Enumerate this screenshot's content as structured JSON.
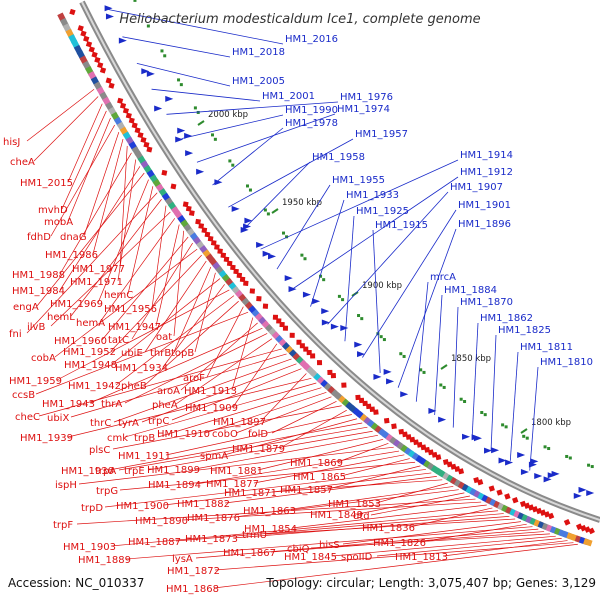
{
  "title": "Heliobacterium modesticaldum Ice1, complete genome",
  "accession_label": "Accession: NC_010337",
  "summary": "Topology: circular; Length: 3,075,407 bp; Genes: 3,129",
  "scale_labels": [
    "2000 kbp",
    "1950 kbp",
    "1900 kbp",
    "1850 kbp",
    "1800 kbp"
  ],
  "blue_labels": [
    "HM1_2016",
    "HM1_2018",
    "HM1_2005",
    "HM1_2001",
    "HM1_1976",
    "HM1_1990",
    "HM1_1974",
    "HM1_1978",
    "HM1_1957",
    "HM1_1958",
    "HM1_1914",
    "HM1_1955",
    "HM1_1912",
    "HM1_1933",
    "HM1_1907",
    "HM1_1925",
    "HM1_1901",
    "HM1_1915",
    "HM1_1896",
    "mrcA",
    "HM1_1884",
    "HM1_1870",
    "HM1_1862",
    "HM1_1825",
    "HM1_1811",
    "HM1_1810"
  ],
  "red_labels": [
    "hisJ",
    "cheA",
    "HM1_2015",
    "mvhD",
    "mobA",
    "fdhD",
    "dnaG",
    "HM1_1986",
    "HM1_1977",
    "HM1_1988",
    "HM1_1971",
    "HM1_1984",
    "engA",
    "HM1_1969",
    "hemC",
    "fni",
    "hemL",
    "HM1_1956",
    "ilvB",
    "hemA",
    "HM1_1947",
    "oat",
    "HM1_1960",
    "tatC",
    "cobA",
    "HM1_1952",
    "ubiE",
    "thrB",
    "topB",
    "HM1_1948",
    "HM1_1934",
    "HM1_1959",
    "HM1_1942",
    "pheB",
    "aroF",
    "ccsB",
    "HM1_1913",
    "aroA",
    "HM1_1943",
    "thrA",
    "pheA",
    "HM1_1909",
    "cheC",
    "ubiX",
    "thrC",
    "tyrA",
    "trpC",
    "HM1_1897",
    "HM1_1939",
    "cmk",
    "trpB",
    "HM1_1910",
    "cobO",
    "folD",
    "plsC",
    "HM1_1879",
    "HM1_1911",
    "spmA",
    "HM1_1930",
    "trpA",
    "trpE",
    "HM1_1899",
    "HM1_1881",
    "HM1_1869",
    "ispH",
    "HM1_1894",
    "HM1_1877",
    "HM1_1865",
    "trpG",
    "HM1_1857",
    "trpD",
    "HM1_1900",
    "HM1_1882",
    "HM1_1871",
    "HM1_1853",
    "HM1_1876",
    "HM1_1863",
    "HM1_1849",
    "dtd",
    "trpF",
    "HM1_1890",
    "HM1_1854",
    "HM1_1836",
    "HM1_1903",
    "HM1_1887",
    "HM1_1873",
    "trmU",
    "hisS",
    "HM1_1826",
    "HM1_1889",
    "lysA",
    "HM1_1867",
    "cbiQ",
    "HM1_1845",
    "spoIID",
    "HM1_1813",
    "HM1_1872",
    "HM1_1868"
  ],
  "colors": {
    "blue": "#1a2bc9",
    "red": "#dd1111",
    "backbone": "#8a8a8a",
    "green": "#2e8b2e"
  }
}
